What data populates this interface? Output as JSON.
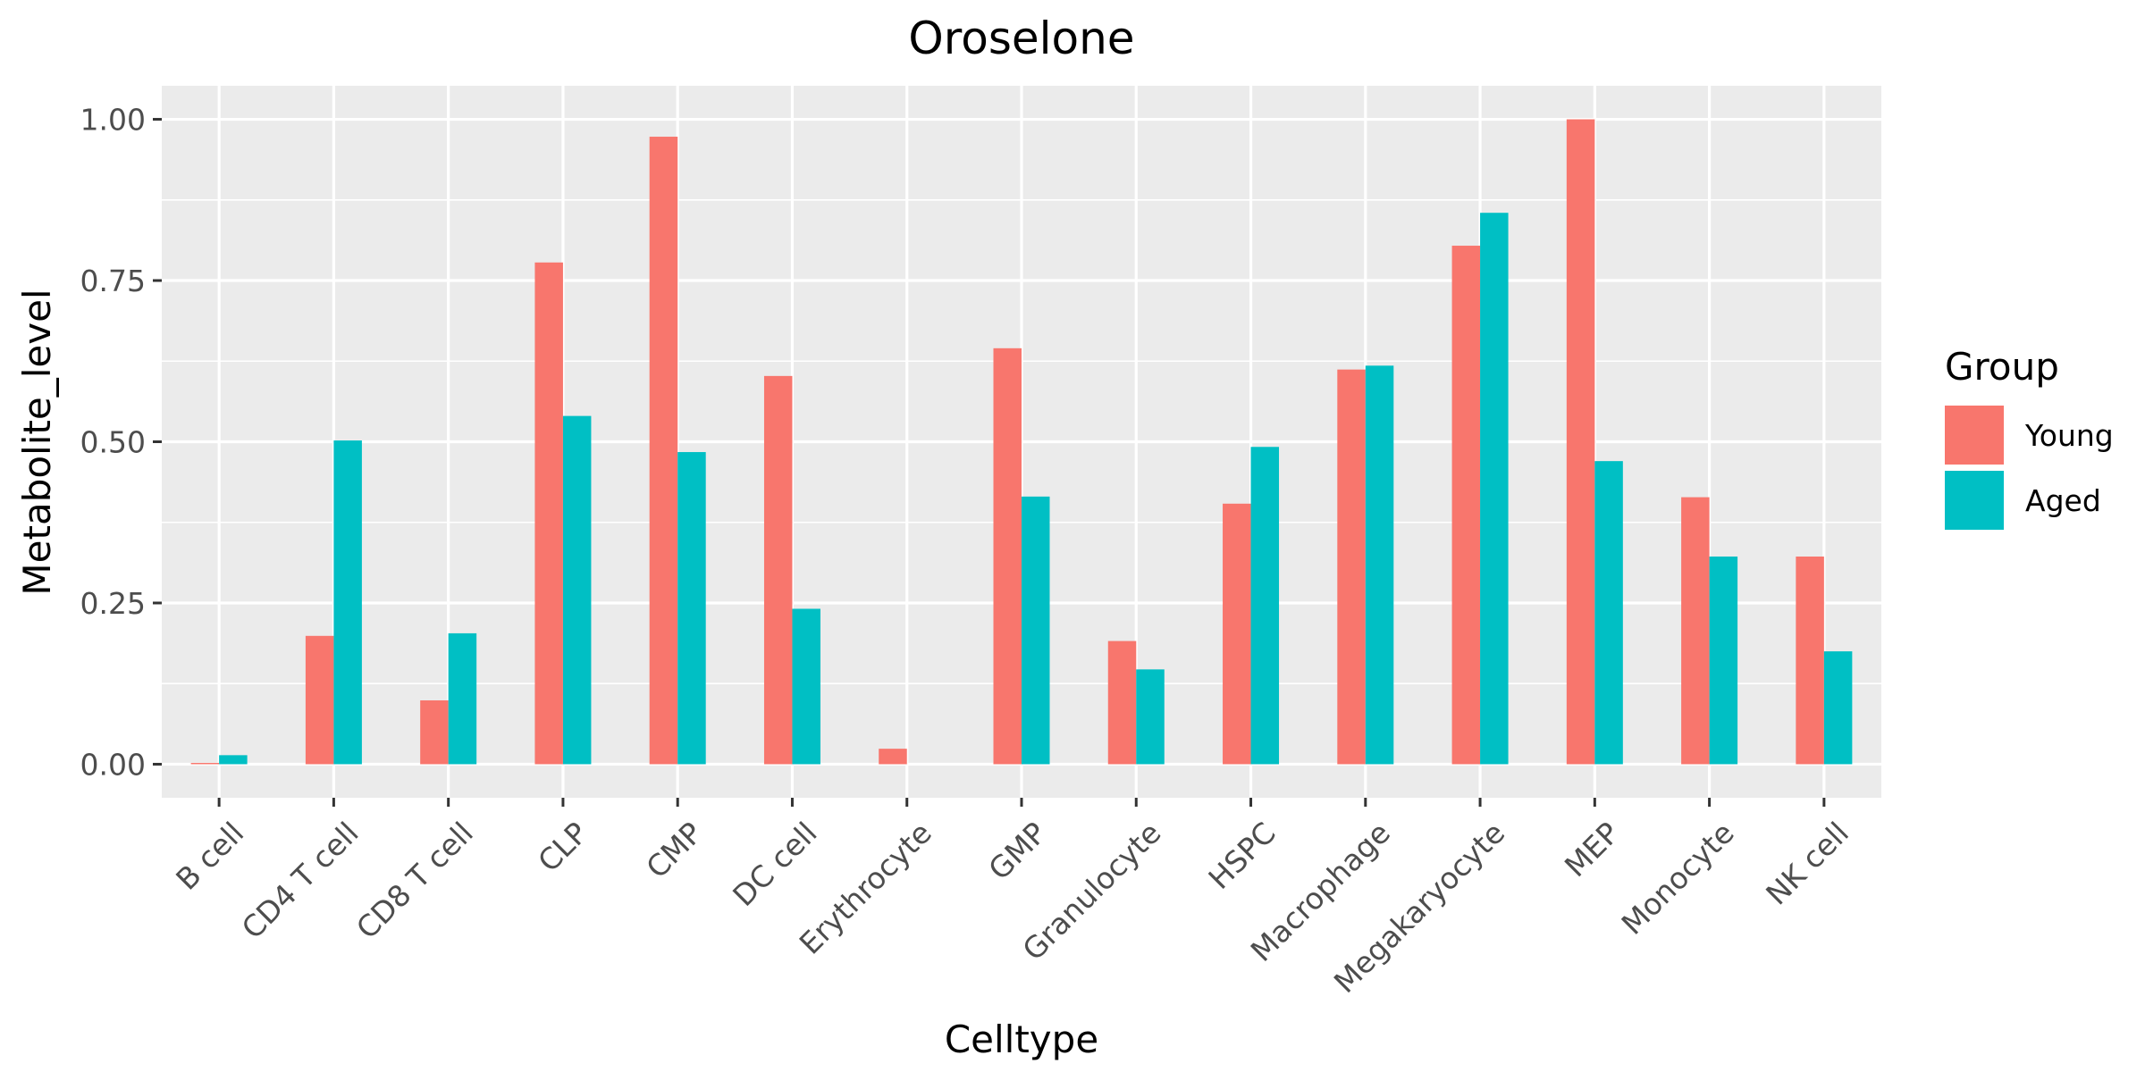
{
  "chart_data": {
    "type": "bar",
    "title": "Oroselone",
    "xlabel": "Celltype",
    "ylabel": "Metabolite_level",
    "categories": [
      "B cell",
      "CD4 T cell",
      "CD8 T cell",
      "CLP",
      "CMP",
      "DC cell",
      "Erythrocyte",
      "GMP",
      "Granulocyte",
      "HSPC",
      "Macrophage",
      "Megakaryocyte",
      "MEP",
      "Monocyte",
      "NK cell"
    ],
    "series": [
      {
        "name": "Young",
        "color": "#F8766D",
        "values": [
          0.002,
          0.199,
          0.099,
          0.778,
          0.973,
          0.602,
          0.024,
          0.645,
          0.191,
          0.404,
          0.612,
          0.804,
          1.0,
          0.414,
          0.322
        ]
      },
      {
        "name": "Aged",
        "color": "#00BFC4",
        "values": [
          0.014,
          0.502,
          0.203,
          0.54,
          0.484,
          0.241,
          0.0,
          0.415,
          0.147,
          0.492,
          0.618,
          0.855,
          0.47,
          0.322,
          0.175
        ]
      }
    ],
    "ylim": [
      -0.052,
      1.052
    ],
    "yticks": [
      0.0,
      0.25,
      0.5,
      0.75,
      1.0
    ],
    "ytick_labels": [
      "0.00",
      "0.25",
      "0.50",
      "0.75",
      "1.00"
    ],
    "legend": {
      "title": "Group",
      "position": "right"
    },
    "grid": true,
    "panel_background": "#EBEBEB",
    "grid_color": "#FFFFFF"
  }
}
